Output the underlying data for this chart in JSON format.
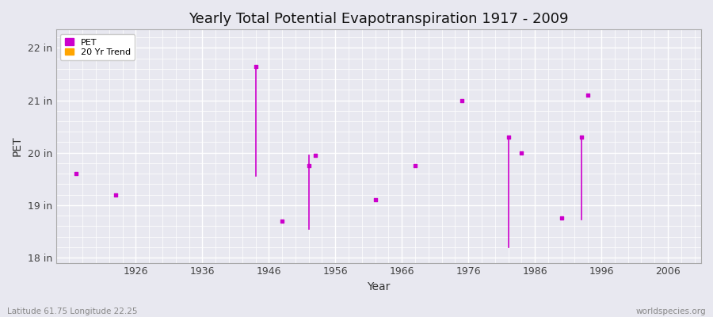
{
  "title": "Yearly Total Potential Evapotranspiration 1917 - 2009",
  "xlabel": "Year",
  "ylabel": "PET",
  "bg_color": "#e8e8f0",
  "grid_color": "#ffffff",
  "fig_bg": "#e8e8f0",
  "xlim": [
    1914,
    2011
  ],
  "ylim": [
    17.9,
    22.35
  ],
  "yticks": [
    18,
    19,
    20,
    21,
    22
  ],
  "ytick_labels": [
    "18 in",
    "19 in",
    "20 in",
    "21 in",
    "22 in"
  ],
  "xticks": [
    1926,
    1936,
    1946,
    1956,
    1966,
    1976,
    1986,
    1996,
    2006
  ],
  "pet_color": "#cc00cc",
  "trend_color": "#ffa500",
  "footer_left": "Latitude 61.75 Longitude 22.25",
  "footer_right": "worldspecies.org",
  "pet_points": [
    [
      1917,
      19.6
    ],
    [
      1923,
      19.2
    ],
    [
      1944,
      21.65
    ],
    [
      1948,
      18.7
    ],
    [
      1952,
      19.75
    ],
    [
      1953,
      19.95
    ],
    [
      1962,
      19.1
    ],
    [
      1968,
      19.75
    ],
    [
      1975,
      21.0
    ],
    [
      1982,
      20.3
    ],
    [
      1984,
      20.0
    ],
    [
      1990,
      18.75
    ],
    [
      1993,
      20.3
    ],
    [
      1994,
      21.1
    ]
  ],
  "trend_segments": [
    [
      [
        1944,
        21.65
      ],
      [
        1944,
        19.55
      ]
    ],
    [
      [
        1952,
        19.95
      ],
      [
        1952,
        18.55
      ]
    ],
    [
      [
        1982,
        20.3
      ],
      [
        1982,
        18.2
      ]
    ],
    [
      [
        1993,
        20.3
      ],
      [
        1993,
        18.72
      ]
    ]
  ]
}
